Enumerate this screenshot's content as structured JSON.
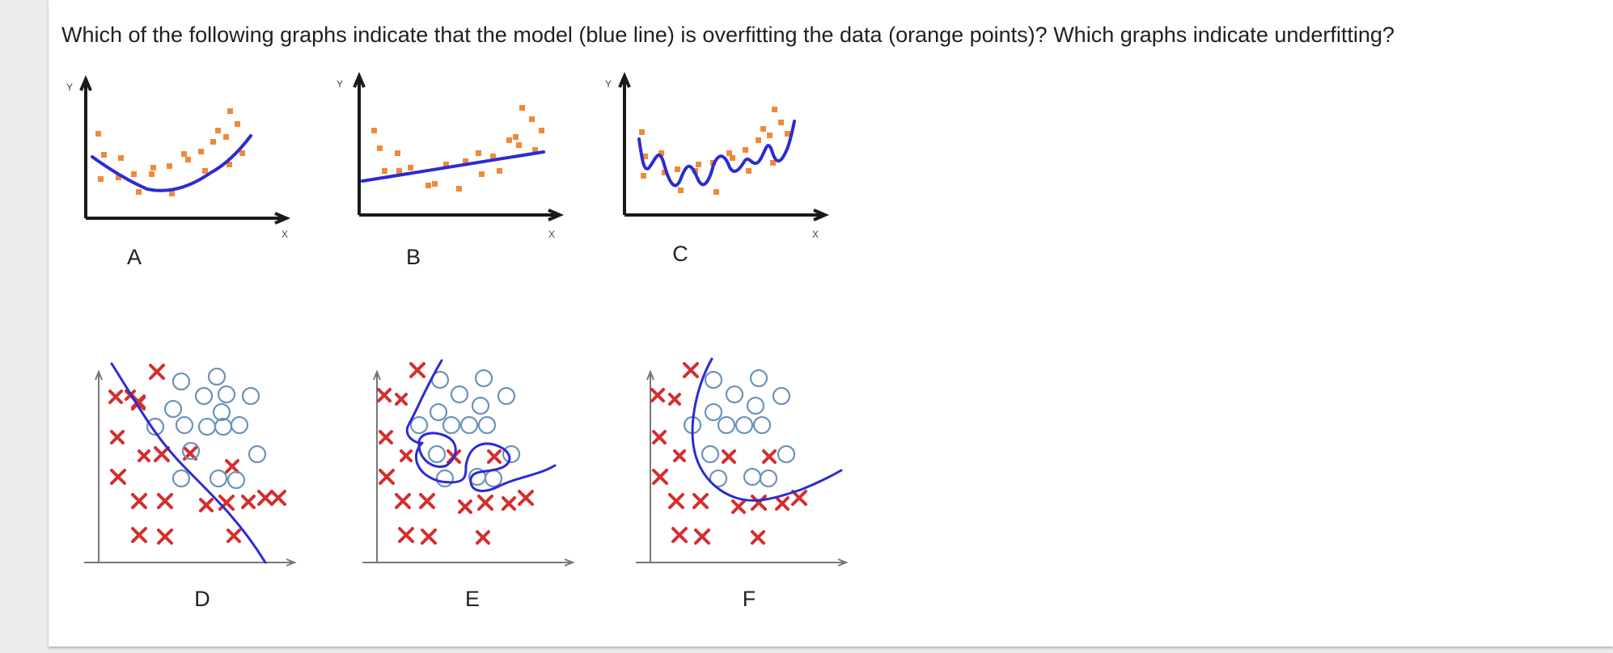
{
  "question": "Which of the following graphs indicate that the model (blue line) is overfitting the data (orange points)? Which graphs indicate underfitting?",
  "graphs": [
    {
      "label": "A",
      "y_axis": "Y",
      "x_axis": "X"
    },
    {
      "label": "B",
      "y_axis": "Y",
      "x_axis": "X"
    },
    {
      "label": "C",
      "y_axis": "Y",
      "x_axis": "X"
    },
    {
      "label": "D"
    },
    {
      "label": "E"
    },
    {
      "label": "F"
    }
  ],
  "colors": {
    "model_line": "#2b2bd4",
    "data_points": "#ef8a3a",
    "x_marks": "#d42e2e",
    "o_marks": "#6d93b8"
  }
}
